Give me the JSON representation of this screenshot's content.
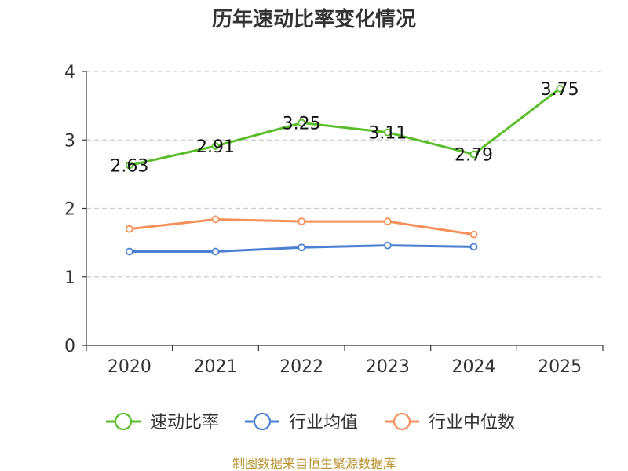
{
  "chart_data": {
    "type": "line",
    "title": "历年速动比率变化情况",
    "xlabel": "",
    "ylabel": "",
    "categories": [
      "2020",
      "2021",
      "2022",
      "2023",
      "2024",
      "2025"
    ],
    "ylim": [
      0,
      4
    ],
    "yticks": [
      "0",
      "1",
      "2",
      "3",
      "4"
    ],
    "grid": true,
    "legend_position": "bottom",
    "series": [
      {
        "name": "速动比率",
        "color": "#5bbd2b",
        "values": [
          2.63,
          2.91,
          3.25,
          3.11,
          2.79,
          3.75
        ],
        "labels": [
          "2.63",
          "2.91",
          "3.25",
          "3.11",
          "2.79",
          "3.75"
        ]
      },
      {
        "name": "行业均值",
        "color": "#4a7fd4",
        "values": [
          1.37,
          1.37,
          1.43,
          1.46,
          1.44,
          null
        ]
      },
      {
        "name": "行业中位数",
        "color": "#f5905a",
        "values": [
          1.7,
          1.84,
          1.81,
          1.81,
          1.62,
          null
        ]
      }
    ]
  },
  "source_text": "制图数据来自恒生聚源数据库"
}
